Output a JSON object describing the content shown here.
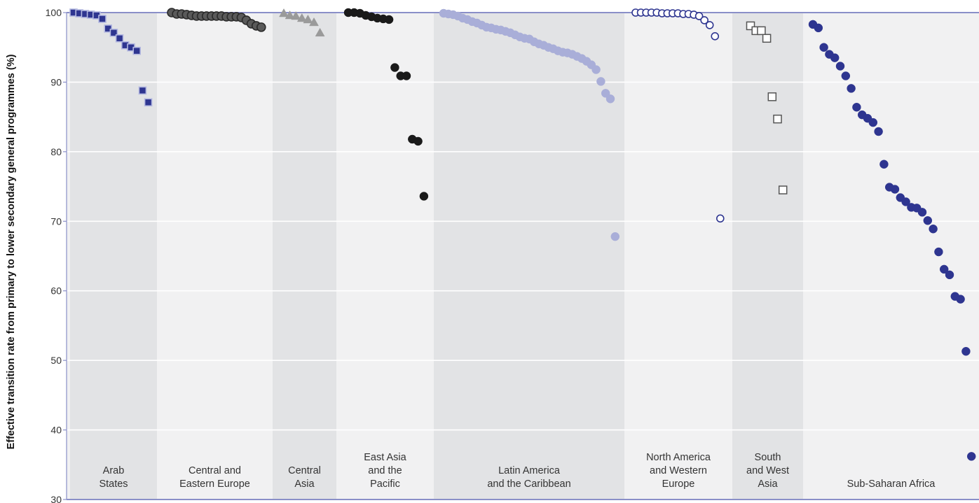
{
  "chart_data": {
    "type": "scatter",
    "title": "",
    "xlabel": "",
    "ylabel": "Effective transition rate from primary to lower secondary general programmes (%)",
    "ylim": [
      30,
      100
    ],
    "yticks": [
      30,
      40,
      50,
      60,
      70,
      80,
      90,
      100
    ],
    "grid": true,
    "legend": "none",
    "groups": [
      {
        "label": [
          "Arab",
          "States"
        ],
        "marker": "square",
        "color": "#2e3590",
        "edge": "#b3b8e0",
        "values": [
          100,
          99.9,
          99.8,
          99.7,
          99.6,
          99.1,
          97.7,
          97.1,
          96.3,
          95.3,
          95.0,
          94.5,
          88.8,
          87.1
        ]
      },
      {
        "label": [
          "Central and",
          "Eastern Europe"
        ],
        "marker": "circle",
        "color": "#5a5a5a",
        "edge": "#2b2b2b",
        "values": [
          100,
          99.8,
          99.8,
          99.7,
          99.6,
          99.5,
          99.5,
          99.5,
          99.5,
          99.5,
          99.5,
          99.4,
          99.4,
          99.4,
          99.3,
          98.9,
          98.4,
          98.1,
          97.9
        ]
      },
      {
        "label": [
          "Central",
          "Asia"
        ],
        "marker": "triangle",
        "color": "#9a9a9a",
        "edge": "#9a9a9a",
        "values": [
          99.9,
          99.6,
          99.5,
          99.2,
          99.0,
          98.6,
          97.1
        ]
      },
      {
        "label": [
          "East Asia",
          "and the",
          "Pacific"
        ],
        "marker": "circle",
        "color": "#1a1a1a",
        "edge": "#1a1a1a",
        "values": [
          100,
          100,
          99.9,
          99.6,
          99.4,
          99.2,
          99.1,
          99.0,
          92.1,
          90.9,
          90.9,
          81.8,
          81.5,
          73.6
        ]
      },
      {
        "label": [
          "Latin America",
          "and the Caribbean"
        ],
        "marker": "circle",
        "color": "#a9aed8",
        "edge": "#a9aed8",
        "values": [
          99.9,
          99.8,
          99.7,
          99.5,
          99.2,
          99.0,
          98.7,
          98.5,
          98.2,
          97.9,
          97.8,
          97.6,
          97.5,
          97.3,
          97.1,
          96.8,
          96.5,
          96.3,
          96.2,
          95.8,
          95.5,
          95.3,
          95.0,
          94.8,
          94.5,
          94.3,
          94.2,
          94.0,
          93.7,
          93.4,
          93.0,
          92.5,
          91.8,
          90.1,
          88.4,
          87.6,
          67.8
        ]
      },
      {
        "label": [
          "North America",
          "and Western",
          "Europe"
        ],
        "marker": "circle-open",
        "color": "#ffffff",
        "edge": "#2e3590",
        "values": [
          100,
          100,
          100,
          100,
          100,
          99.9,
          99.9,
          99.9,
          99.9,
          99.8,
          99.8,
          99.7,
          99.5,
          98.9,
          98.2,
          96.6,
          70.4
        ]
      },
      {
        "label": [
          "South",
          "and West",
          "Asia"
        ],
        "marker": "square-open",
        "color": "#ffffff",
        "edge": "#555555",
        "values": [
          98.1,
          97.4,
          97.4,
          96.3,
          87.9,
          84.7,
          74.5
        ]
      },
      {
        "label": [
          "Sub-Saharan Africa"
        ],
        "marker": "circle",
        "color": "#2e3590",
        "edge": "#2e3590",
        "values": [
          98.3,
          97.8,
          95.0,
          94.0,
          93.5,
          92.3,
          90.9,
          89.1,
          86.4,
          85.3,
          84.8,
          84.2,
          82.9,
          78.2,
          74.9,
          74.6,
          73.4,
          72.8,
          72.0,
          71.9,
          71.3,
          70.1,
          68.9,
          65.6,
          63.1,
          62.3,
          59.2,
          58.8,
          51.3,
          36.2
        ]
      }
    ]
  }
}
